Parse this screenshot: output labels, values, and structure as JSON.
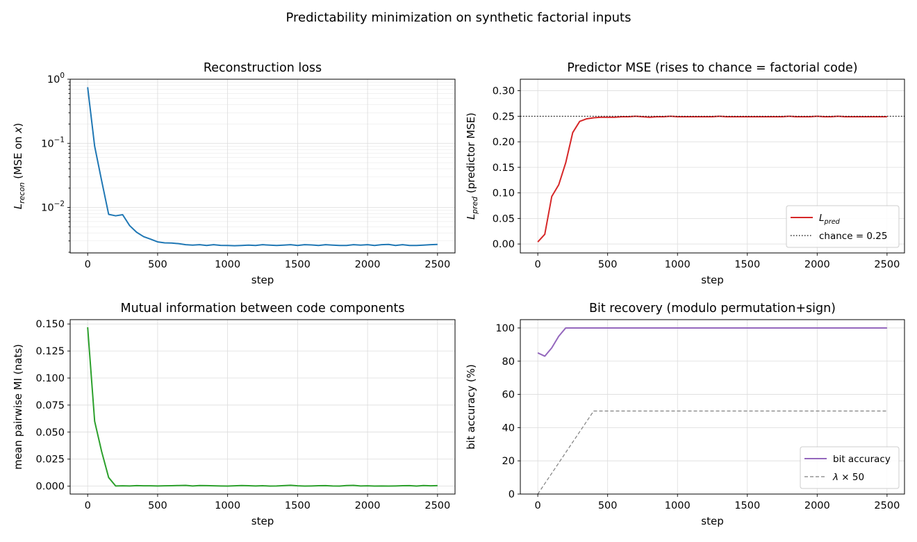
{
  "figure": {
    "title": "Predictability minimization on synthetic factorial inputs"
  },
  "chart_data": [
    {
      "type": "line",
      "title": "Reconstruction loss",
      "xlabel": "step",
      "ylabel": "L_recon (MSE on x)",
      "ylabel_parts": {
        "main": "L",
        "sub": "recon",
        "rest": " (MSE on ",
        "var": "x",
        "end": ")"
      },
      "yscale": "log",
      "xlim": [
        -125,
        2625
      ],
      "ylim": [
        0.00195,
        1.0
      ],
      "xticks": [
        0,
        500,
        1000,
        1500,
        2000,
        2500
      ],
      "xtick_labels": [
        "0",
        "500",
        "1000",
        "1500",
        "2000",
        "2500"
      ],
      "yticks": [
        0.01,
        0.1,
        1
      ],
      "ytick_labels": [
        {
          "base": "10",
          "exp": "−2"
        },
        {
          "base": "10",
          "exp": "−1"
        },
        {
          "base": "10",
          "exp": "0"
        }
      ],
      "grid": true,
      "legend": null,
      "series": [
        {
          "color": "#1f77b4",
          "x": [
            0,
            50,
            100,
            150,
            200,
            250,
            300,
            350,
            400,
            450,
            500,
            550,
            600,
            650,
            700,
            750,
            800,
            850,
            900,
            950,
            1000,
            1050,
            1100,
            1150,
            1200,
            1250,
            1300,
            1350,
            1400,
            1450,
            1500,
            1550,
            1600,
            1650,
            1700,
            1750,
            1800,
            1850,
            1900,
            1950,
            2000,
            2050,
            2100,
            2150,
            2200,
            2250,
            2300,
            2350,
            2400,
            2450,
            2500
          ],
          "y": [
            0.75,
            0.09,
            0.026,
            0.0078,
            0.0074,
            0.0077,
            0.0052,
            0.0041,
            0.0035,
            0.0032,
            0.0029,
            0.0028,
            0.00278,
            0.00272,
            0.00262,
            0.00258,
            0.00262,
            0.00255,
            0.00262,
            0.00256,
            0.00255,
            0.00253,
            0.00255,
            0.00258,
            0.00255,
            0.00262,
            0.00258,
            0.00255,
            0.00258,
            0.00262,
            0.00255,
            0.00262,
            0.0026,
            0.00255,
            0.00262,
            0.00258,
            0.00255,
            0.00255,
            0.00262,
            0.00258,
            0.00262,
            0.00255,
            0.00262,
            0.00265,
            0.00255,
            0.00262,
            0.00255,
            0.00255,
            0.00258,
            0.00262,
            0.00265
          ]
        }
      ]
    },
    {
      "type": "line",
      "title": "Predictor MSE  (rises to chance = factorial code)",
      "xlabel": "step",
      "ylabel": "L_pred (predictor MSE)",
      "ylabel_parts": {
        "main": "L",
        "sub": "pred",
        "rest": " (predictor MSE)"
      },
      "xlim": [
        -125,
        2625
      ],
      "ylim": [
        -0.0175,
        0.3225
      ],
      "xticks": [
        0,
        500,
        1000,
        1500,
        2000,
        2500
      ],
      "xtick_labels": [
        "0",
        "500",
        "1000",
        "1500",
        "2000",
        "2500"
      ],
      "yticks": [
        0,
        0.05,
        0.1,
        0.15,
        0.2,
        0.25,
        0.3
      ],
      "ytick_labels": [
        "0.00",
        "0.05",
        "0.10",
        "0.15",
        "0.20",
        "0.25",
        "0.30"
      ],
      "grid": true,
      "legend": "lower right",
      "series": [
        {
          "name": "L_pred",
          "legend_parts": {
            "main": "L",
            "sub": "pred"
          },
          "color": "#d62728",
          "style": "solid",
          "x": [
            0,
            50,
            100,
            150,
            200,
            250,
            300,
            350,
            400,
            450,
            500,
            550,
            600,
            650,
            700,
            750,
            800,
            850,
            900,
            950,
            1000,
            1050,
            1100,
            1150,
            1200,
            1250,
            1300,
            1350,
            1400,
            1450,
            1500,
            1550,
            1600,
            1650,
            1700,
            1750,
            1800,
            1850,
            1900,
            1950,
            2000,
            2050,
            2100,
            2150,
            2200,
            2250,
            2300,
            2350,
            2400,
            2450,
            2500
          ],
          "y": [
            0.004,
            0.019,
            0.093,
            0.116,
            0.159,
            0.218,
            0.24,
            0.245,
            0.247,
            0.248,
            0.248,
            0.248,
            0.249,
            0.249,
            0.25,
            0.249,
            0.248,
            0.249,
            0.249,
            0.25,
            0.249,
            0.249,
            0.249,
            0.249,
            0.249,
            0.249,
            0.25,
            0.249,
            0.249,
            0.249,
            0.249,
            0.249,
            0.249,
            0.249,
            0.249,
            0.249,
            0.25,
            0.249,
            0.249,
            0.249,
            0.25,
            0.249,
            0.249,
            0.25,
            0.249,
            0.249,
            0.249,
            0.249,
            0.249,
            0.249,
            0.249
          ]
        },
        {
          "name": "chance = 0.25",
          "color": "#000000",
          "style": "dotted",
          "hline": 0.25
        }
      ]
    },
    {
      "type": "line",
      "title": "Mutual information between code components",
      "xlabel": "step",
      "ylabel": "mean pairwise MI (nats)",
      "xlim": [
        -125,
        2625
      ],
      "ylim": [
        -0.0073,
        0.154
      ],
      "xticks": [
        0,
        500,
        1000,
        1500,
        2000,
        2500
      ],
      "xtick_labels": [
        "0",
        "500",
        "1000",
        "1500",
        "2000",
        "2500"
      ],
      "yticks": [
        0,
        0.025,
        0.05,
        0.075,
        0.1,
        0.125,
        0.15
      ],
      "ytick_labels": [
        "0.000",
        "0.025",
        "0.050",
        "0.075",
        "0.100",
        "0.125",
        "0.150"
      ],
      "grid": true,
      "legend": null,
      "series": [
        {
          "color": "#2ca02c",
          "x": [
            0,
            50,
            100,
            150,
            200,
            250,
            300,
            350,
            400,
            450,
            500,
            550,
            600,
            650,
            700,
            750,
            800,
            850,
            900,
            950,
            1000,
            1050,
            1100,
            1150,
            1200,
            1250,
            1300,
            1350,
            1400,
            1450,
            1500,
            1550,
            1600,
            1650,
            1700,
            1750,
            1800,
            1850,
            1900,
            1950,
            2000,
            2050,
            2100,
            2150,
            2200,
            2250,
            2300,
            2350,
            2400,
            2450,
            2500
          ],
          "y": [
            0.147,
            0.06,
            0.032,
            0.008,
            0.0002,
            0.0003,
            0.0002,
            0.0005,
            0.0003,
            0.0003,
            0.0002,
            0.0003,
            0.0004,
            0.0006,
            0.0007,
            0.0002,
            0.0006,
            0.0005,
            0.0003,
            0.0002,
            0.0001,
            0.0003,
            0.0006,
            0.0004,
            0.0002,
            0.0004,
            0.0001,
            0.0002,
            0.0005,
            0.0008,
            0.0003,
            0.0001,
            0.0002,
            0.0004,
            0.0005,
            0.0002,
            0.0001,
            0.0006,
            0.0007,
            0.0002,
            0.0003,
            0.0001,
            0.0002,
            0.0001,
            0.0002,
            0.0004,
            0.0005,
            0.0001,
            0.0006,
            0.0003,
            0.0005
          ]
        }
      ]
    },
    {
      "type": "line",
      "title": "Bit recovery (modulo permutation+sign)",
      "xlabel": "step",
      "ylabel": "bit accuracy (%)",
      "xlim": [
        -125,
        2625
      ],
      "ylim": [
        0,
        105
      ],
      "xticks": [
        0,
        500,
        1000,
        1500,
        2000,
        2500
      ],
      "xtick_labels": [
        "0",
        "500",
        "1000",
        "1500",
        "2000",
        "2500"
      ],
      "yticks": [
        0,
        20,
        40,
        60,
        80,
        100
      ],
      "ytick_labels": [
        "0",
        "20",
        "40",
        "60",
        "80",
        "100"
      ],
      "grid": true,
      "legend": "lower right",
      "series": [
        {
          "name": "bit accuracy",
          "color": "#9467bd",
          "style": "solid",
          "x": [
            0,
            50,
            100,
            150,
            200,
            250,
            300,
            500,
            1000,
            1500,
            2000,
            2500
          ],
          "y": [
            85,
            83,
            88,
            95,
            100,
            100,
            100,
            100,
            100,
            100,
            100,
            100
          ]
        },
        {
          "name": "λ × 50",
          "legend_parts": {
            "main": "λ",
            "rest": " × 50"
          },
          "color": "#7f7f7f",
          "style": "dashed",
          "x": [
            0,
            400,
            2500
          ],
          "y": [
            0,
            50,
            50
          ]
        }
      ]
    }
  ]
}
